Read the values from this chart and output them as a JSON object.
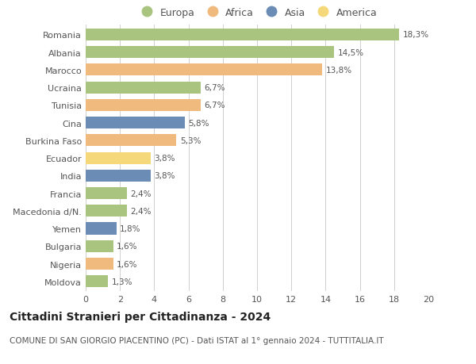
{
  "categories": [
    "Romania",
    "Albania",
    "Marocco",
    "Ucraina",
    "Tunisia",
    "Cina",
    "Burkina Faso",
    "Ecuador",
    "India",
    "Francia",
    "Macedonia d/N.",
    "Yemen",
    "Bulgaria",
    "Nigeria",
    "Moldova"
  ],
  "values": [
    18.3,
    14.5,
    13.8,
    6.7,
    6.7,
    5.8,
    5.3,
    3.8,
    3.8,
    2.4,
    2.4,
    1.8,
    1.6,
    1.6,
    1.3
  ],
  "labels": [
    "18,3%",
    "14,5%",
    "13,8%",
    "6,7%",
    "6,7%",
    "5,8%",
    "5,3%",
    "3,8%",
    "3,8%",
    "2,4%",
    "2,4%",
    "1,8%",
    "1,6%",
    "1,6%",
    "1,3%"
  ],
  "continents": [
    "Europa",
    "Europa",
    "Africa",
    "Europa",
    "Africa",
    "Asia",
    "Africa",
    "America",
    "Asia",
    "Europa",
    "Europa",
    "Asia",
    "Europa",
    "Africa",
    "Europa"
  ],
  "continent_colors": {
    "Europa": "#a8c47f",
    "Africa": "#f0b97d",
    "Asia": "#6b8db5",
    "America": "#f5d87a"
  },
  "legend_order": [
    "Europa",
    "Africa",
    "Asia",
    "America"
  ],
  "xlim": [
    0,
    20
  ],
  "xticks": [
    0,
    2,
    4,
    6,
    8,
    10,
    12,
    14,
    16,
    18,
    20
  ],
  "title": "Cittadini Stranieri per Cittadinanza - 2024",
  "subtitle": "COMUNE DI SAN GIORGIO PIACENTINO (PC) - Dati ISTAT al 1° gennaio 2024 - TUTTITALIA.IT",
  "background_color": "#ffffff",
  "grid_color": "#d0d0d0",
  "bar_height": 0.68,
  "title_fontsize": 10,
  "subtitle_fontsize": 7.5,
  "label_fontsize": 7.5,
  "tick_fontsize": 8,
  "legend_fontsize": 9
}
